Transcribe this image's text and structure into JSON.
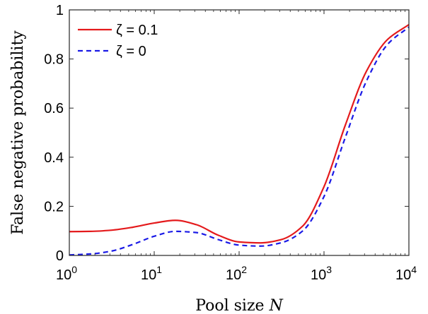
{
  "chart_data": {
    "type": "line",
    "xlabel": "Pool size N",
    "xlabel_parts": {
      "text": "Pool size ",
      "var": "N"
    },
    "ylabel": "False negative probability",
    "xscale": "log",
    "xlim": [
      1,
      10000
    ],
    "ylim": [
      0,
      1
    ],
    "xticks": [
      {
        "value": 1,
        "base": "10",
        "exp": "0"
      },
      {
        "value": 10,
        "base": "10",
        "exp": "1"
      },
      {
        "value": 100,
        "base": "10",
        "exp": "2"
      },
      {
        "value": 1000,
        "base": "10",
        "exp": "3"
      },
      {
        "value": 10000,
        "base": "10",
        "exp": "4"
      }
    ],
    "yticks": [
      {
        "value": 0,
        "label": "0"
      },
      {
        "value": 0.2,
        "label": "0.2"
      },
      {
        "value": 0.4,
        "label": "0.4"
      },
      {
        "value": 0.6,
        "label": "0.6"
      },
      {
        "value": 0.8,
        "label": "0.8"
      },
      {
        "value": 1,
        "label": "1"
      }
    ],
    "grid": false,
    "legend_position": "top-left",
    "series": [
      {
        "name": "ζ = 0.1",
        "color": "#e41a1c",
        "style": "solid",
        "x": [
          1,
          1.78,
          3.16,
          5.62,
          10,
          17.8,
          31.6,
          56.2,
          100,
          178,
          316,
          562,
          1000,
          1780,
          3160,
          5620,
          10000
        ],
        "y": [
          0.097,
          0.098,
          0.103,
          0.115,
          0.132,
          0.143,
          0.125,
          0.083,
          0.055,
          0.051,
          0.065,
          0.12,
          0.28,
          0.53,
          0.75,
          0.88,
          0.94
        ]
      },
      {
        "name": "ζ = 0",
        "color": "#1a1ae6",
        "style": "dashed",
        "x": [
          1,
          1.78,
          3.16,
          5.62,
          10,
          17.8,
          31.6,
          56.2,
          100,
          178,
          316,
          562,
          1000,
          1780,
          3160,
          5620,
          10000
        ],
        "y": [
          0.002,
          0.006,
          0.018,
          0.045,
          0.078,
          0.098,
          0.093,
          0.065,
          0.042,
          0.038,
          0.052,
          0.1,
          0.24,
          0.48,
          0.71,
          0.86,
          0.93
        ]
      }
    ]
  }
}
